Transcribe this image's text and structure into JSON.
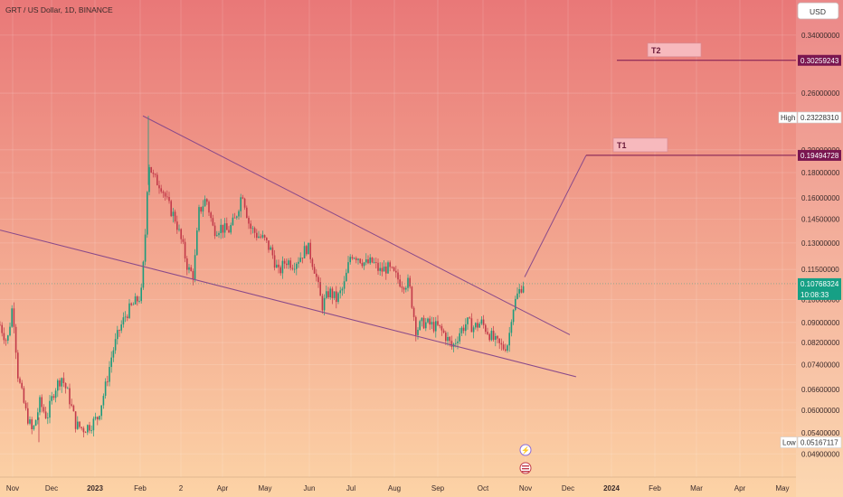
{
  "header": {
    "symbol": "GRT / US Dollar, 1D, BINANCE"
  },
  "currency_button": "USD",
  "labels": {
    "high_tag": "High",
    "high_value": "0.23228310",
    "low_tag": "Low",
    "low_value": "0.05167117",
    "current_price": "0.10768324",
    "countdown": "10:08:33",
    "t1": "T1",
    "t1_price": "0.19494728",
    "t2": "T2",
    "t2_price": "0.30259243"
  },
  "colors": {
    "bg_top": "#e97878",
    "bg_bottom": "#fcd3a6",
    "candle_up": "#1e9b7c",
    "candle_down": "#c23a4a",
    "trendline": "#8a4a8a",
    "target_line": "#7a1650",
    "price_tag_bg": "#7a1650",
    "current_tag_bg": "#16a085"
  },
  "chart_data": {
    "type": "candlestick",
    "y_scale": "log",
    "ylim": [
      0.046,
      0.37
    ],
    "y_ticks": [
      "0.34000000",
      "0.26000000",
      "0.20000000",
      "0.18000000",
      "0.16000000",
      "0.14500000",
      "0.13000000",
      "0.11500000",
      "0.10000000",
      "0.09000000",
      "0.08200000",
      "0.07400000",
      "0.06600000",
      "0.06000000",
      "0.05400000",
      "0.04900000"
    ],
    "x_ticks": [
      "Nov",
      "Dec",
      "2023",
      "Feb",
      "2",
      "Apr",
      "May",
      "Jun",
      "Jul",
      "Aug",
      "Sep",
      "Oct",
      "Nov",
      "Dec",
      "2024",
      "Feb",
      "Mar",
      "Apr",
      "May"
    ],
    "x_tick_bold": [
      "2023",
      "2024"
    ],
    "close_series": [
      {
        "t": 0,
        "v": 0.089
      },
      {
        "t": 8,
        "v": 0.082
      },
      {
        "t": 14,
        "v": 0.098
      },
      {
        "t": 20,
        "v": 0.07
      },
      {
        "t": 28,
        "v": 0.06
      },
      {
        "t": 36,
        "v": 0.054
      },
      {
        "t": 44,
        "v": 0.062
      },
      {
        "t": 52,
        "v": 0.058
      },
      {
        "t": 60,
        "v": 0.066
      },
      {
        "t": 68,
        "v": 0.07
      },
      {
        "t": 76,
        "v": 0.064
      },
      {
        "t": 84,
        "v": 0.056
      },
      {
        "t": 92,
        "v": 0.055
      },
      {
        "t": 100,
        "v": 0.056
      },
      {
        "t": 108,
        "v": 0.058
      },
      {
        "t": 116,
        "v": 0.066
      },
      {
        "t": 124,
        "v": 0.078
      },
      {
        "t": 132,
        "v": 0.087
      },
      {
        "t": 140,
        "v": 0.094
      },
      {
        "t": 148,
        "v": 0.098
      },
      {
        "t": 156,
        "v": 0.102
      },
      {
        "t": 160,
        "v": 0.128
      },
      {
        "t": 164,
        "v": 0.19
      },
      {
        "t": 170,
        "v": 0.175
      },
      {
        "t": 178,
        "v": 0.17
      },
      {
        "t": 186,
        "v": 0.155
      },
      {
        "t": 194,
        "v": 0.145
      },
      {
        "t": 202,
        "v": 0.128
      },
      {
        "t": 208,
        "v": 0.115
      },
      {
        "t": 214,
        "v": 0.112
      },
      {
        "t": 220,
        "v": 0.15
      },
      {
        "t": 228,
        "v": 0.16
      },
      {
        "t": 236,
        "v": 0.138
      },
      {
        "t": 244,
        "v": 0.14
      },
      {
        "t": 252,
        "v": 0.137
      },
      {
        "t": 260,
        "v": 0.145
      },
      {
        "t": 268,
        "v": 0.165
      },
      {
        "t": 276,
        "v": 0.14
      },
      {
        "t": 284,
        "v": 0.135
      },
      {
        "t": 292,
        "v": 0.132
      },
      {
        "t": 300,
        "v": 0.125
      },
      {
        "t": 308,
        "v": 0.113
      },
      {
        "t": 316,
        "v": 0.12
      },
      {
        "t": 324,
        "v": 0.118
      },
      {
        "t": 332,
        "v": 0.122
      },
      {
        "t": 340,
        "v": 0.128
      },
      {
        "t": 348,
        "v": 0.115
      },
      {
        "t": 356,
        "v": 0.097
      },
      {
        "t": 364,
        "v": 0.104
      },
      {
        "t": 372,
        "v": 0.1
      },
      {
        "t": 380,
        "v": 0.106
      },
      {
        "t": 388,
        "v": 0.124
      },
      {
        "t": 396,
        "v": 0.122
      },
      {
        "t": 404,
        "v": 0.118
      },
      {
        "t": 412,
        "v": 0.119
      },
      {
        "t": 420,
        "v": 0.114
      },
      {
        "t": 428,
        "v": 0.116
      },
      {
        "t": 436,
        "v": 0.112
      },
      {
        "t": 444,
        "v": 0.108
      },
      {
        "t": 452,
        "v": 0.108
      },
      {
        "t": 460,
        "v": 0.087
      },
      {
        "t": 468,
        "v": 0.09
      },
      {
        "t": 476,
        "v": 0.089
      },
      {
        "t": 484,
        "v": 0.088
      },
      {
        "t": 492,
        "v": 0.085
      },
      {
        "t": 500,
        "v": 0.08
      },
      {
        "t": 508,
        "v": 0.086
      },
      {
        "t": 516,
        "v": 0.09
      },
      {
        "t": 524,
        "v": 0.088
      },
      {
        "t": 532,
        "v": 0.09
      },
      {
        "t": 540,
        "v": 0.086
      },
      {
        "t": 548,
        "v": 0.082
      },
      {
        "t": 556,
        "v": 0.08
      },
      {
        "t": 562,
        "v": 0.082
      },
      {
        "t": 566,
        "v": 0.095
      },
      {
        "t": 572,
        "v": 0.102
      },
      {
        "t": 578,
        "v": 0.108
      }
    ],
    "trendlines": [
      {
        "name": "upper-wedge",
        "from": {
          "t": 158,
          "v": 0.234
        },
        "to": {
          "t": 630,
          "v": 0.085
        }
      },
      {
        "name": "lower-wedge",
        "from": {
          "t": 0,
          "v": 0.138
        },
        "to": {
          "t": 637,
          "v": 0.07
        }
      },
      {
        "name": "projection",
        "from": {
          "t": 580,
          "v": 0.111
        },
        "to": {
          "t": 648,
          "v": 0.195
        }
      }
    ],
    "targets": [
      {
        "label": "T1",
        "value": 0.19494728,
        "from_t": 648,
        "box_t": [
          678,
          738
        ]
      },
      {
        "label": "T2",
        "value": 0.30259243,
        "from_t": 682,
        "box_t": [
          716,
          775
        ]
      }
    ],
    "high": 0.2322831,
    "low": 0.05167117,
    "current": 0.10768324,
    "grid": true
  }
}
